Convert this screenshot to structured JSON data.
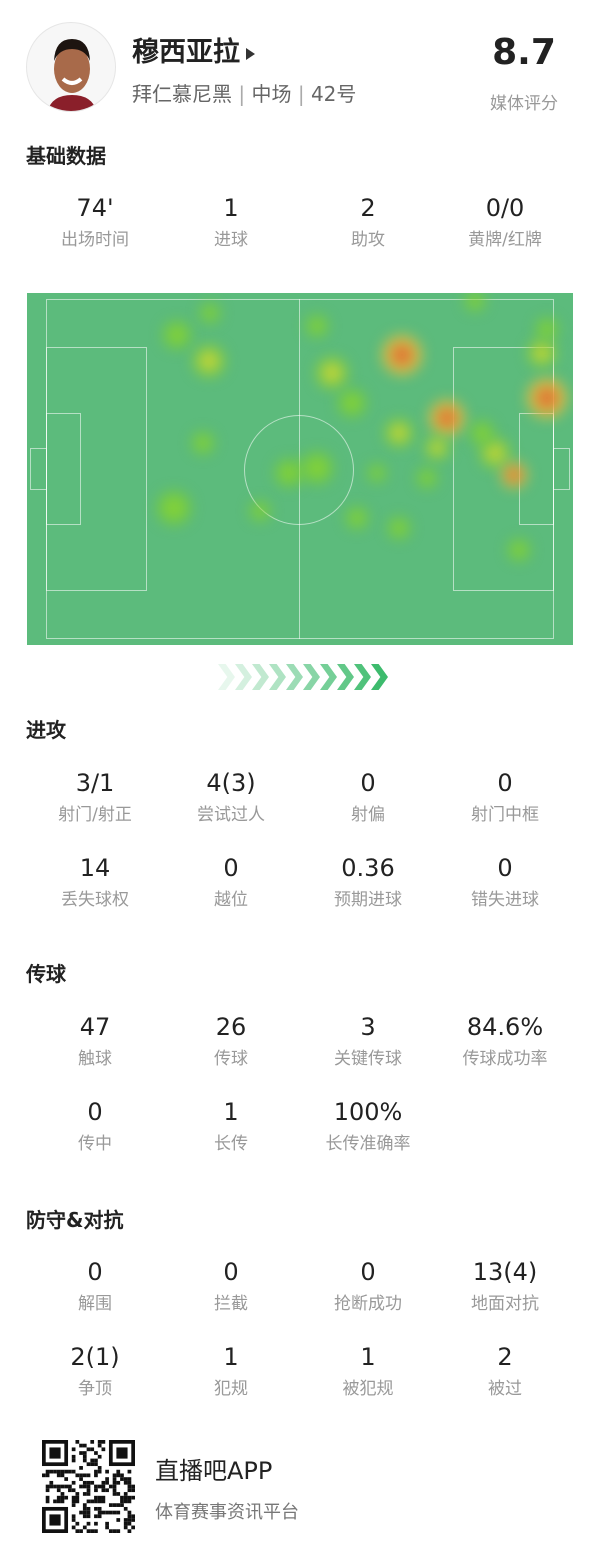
{
  "player": {
    "name": "穆西亚拉",
    "team": "拜仁慕尼黑",
    "position": "中场",
    "number": "42号",
    "rating": "8.7",
    "rating_label": "媒体评分"
  },
  "basic": {
    "title": "基础数据",
    "stats": [
      {
        "value": "74'",
        "label": "出场时间"
      },
      {
        "value": "1",
        "label": "进球"
      },
      {
        "value": "2",
        "label": "助攻"
      },
      {
        "value": "0/0",
        "label": "黄牌/红牌"
      }
    ]
  },
  "attack": {
    "title": "进攻",
    "stats": [
      {
        "value": "3/1",
        "label": "射门/射正"
      },
      {
        "value": "4(3)",
        "label": "尝试过人"
      },
      {
        "value": "0",
        "label": "射偏"
      },
      {
        "value": "0",
        "label": "射门中框"
      },
      {
        "value": "14",
        "label": "丢失球权"
      },
      {
        "value": "0",
        "label": "越位"
      },
      {
        "value": "0.36",
        "label": "预期进球"
      },
      {
        "value": "0",
        "label": "错失进球"
      }
    ]
  },
  "passing": {
    "title": "传球",
    "stats": [
      {
        "value": "47",
        "label": "触球"
      },
      {
        "value": "26",
        "label": "传球"
      },
      {
        "value": "3",
        "label": "关键传球"
      },
      {
        "value": "84.6%",
        "label": "传球成功率"
      },
      {
        "value": "0",
        "label": "传中"
      },
      {
        "value": "1",
        "label": "长传"
      },
      {
        "value": "100%",
        "label": "长传准确率"
      }
    ]
  },
  "defense": {
    "title": "防守&对抗",
    "stats": [
      {
        "value": "0",
        "label": "解围"
      },
      {
        "value": "0",
        "label": "拦截"
      },
      {
        "value": "0",
        "label": "抢断成功"
      },
      {
        "value": "13(4)",
        "label": "地面对抗"
      },
      {
        "value": "2(1)",
        "label": "争顶"
      },
      {
        "value": "1",
        "label": "犯规"
      },
      {
        "value": "1",
        "label": "被犯规"
      },
      {
        "value": "2",
        "label": "被过"
      }
    ]
  },
  "footer": {
    "app_name": "直播吧APP",
    "slogan": "体育赛事资讯平台"
  },
  "colors": {
    "pitch": "#5cbb7c",
    "heat_low": "#7ed321",
    "heat_mid": "#f5d23c",
    "heat_high": "#e0442f",
    "arrow": "#3dbb6d"
  }
}
